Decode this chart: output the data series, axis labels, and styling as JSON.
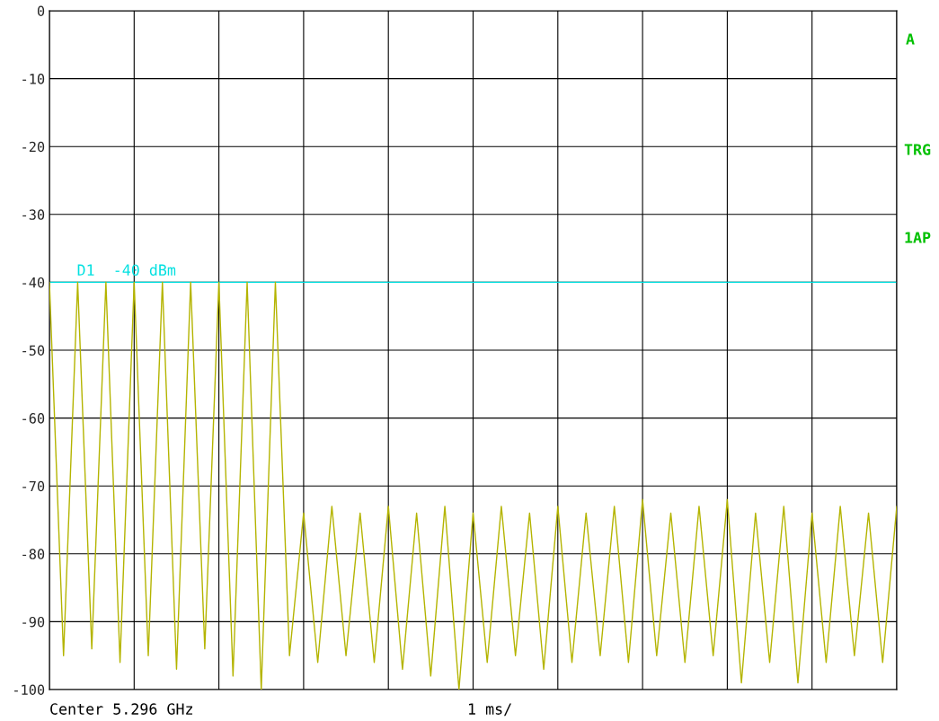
{
  "chart_data": {
    "type": "line",
    "categories": [
      null,
      null,
      null,
      null,
      null,
      null,
      null,
      null,
      null,
      null,
      null,
      null,
      null,
      null,
      null,
      null,
      null,
      null,
      null,
      null,
      null,
      null,
      null,
      null,
      null,
      null,
      null,
      null,
      null,
      null,
      null,
      null,
      null,
      null,
      null,
      null,
      null,
      null,
      null,
      null,
      null,
      null,
      null,
      null,
      null,
      null,
      null,
      null,
      null,
      null,
      null,
      null,
      null,
      null,
      null,
      null,
      null,
      null,
      null,
      null,
      null
    ],
    "ylim": [
      -100,
      0
    ],
    "yticks": [
      -100,
      -90,
      -80,
      -70,
      -60,
      -50,
      -40,
      -30,
      -20,
      -10,
      0
    ],
    "tick_labels": "y",
    "grid": true,
    "series": [
      {
        "color": "#b4b400",
        "values": [
          -40,
          -95,
          -40,
          -94,
          -40,
          -96,
          -40,
          -95,
          -40,
          -97,
          -40,
          -94,
          -40,
          -98,
          -40,
          -100,
          -40,
          -95,
          -74,
          -96,
          -73,
          -95,
          -74,
          -96,
          -73,
          -97,
          -74,
          -98,
          -73,
          -100,
          -74,
          -96,
          -73,
          -95,
          -74,
          -97,
          -73,
          -96,
          -74,
          -95,
          -73,
          -96,
          -72,
          -95,
          -74,
          -96,
          -73,
          -95,
          -72,
          -99,
          -74,
          -96,
          -73,
          -99,
          -74,
          -96,
          -73,
          -95,
          -74,
          -96,
          -73
        ]
      }
    ],
    "ref_lines": [
      {
        "axis": "y",
        "value": -40,
        "label": "D1  -40 dBm",
        "color": "#00e0e0"
      }
    ],
    "annotations": [
      "Center 5.296 GHz",
      "1 ms/",
      "A",
      "TRG",
      "1AP"
    ]
  }
}
